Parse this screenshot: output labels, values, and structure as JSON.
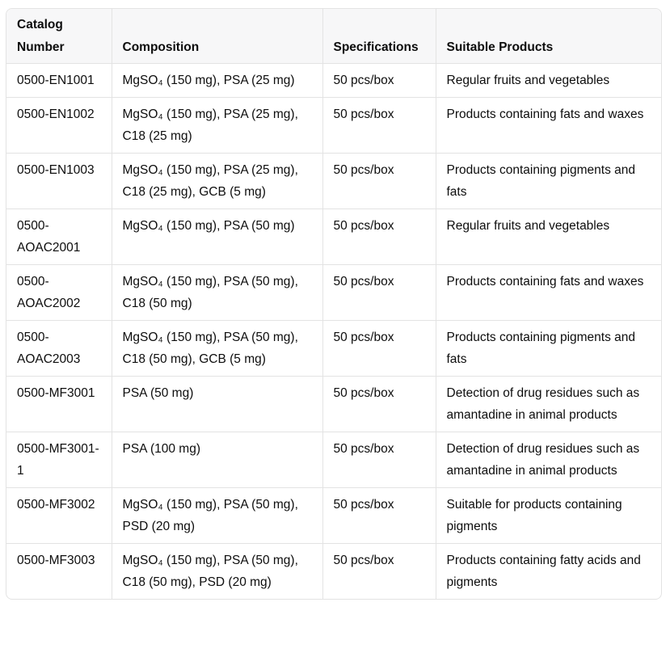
{
  "table": {
    "headers": [
      "Catalog Number",
      "Composition",
      "Specifications",
      "Suitable Products"
    ],
    "rows": [
      {
        "catalog": "0500-EN1001",
        "composition": "MgSO₄ (150 mg), PSA (25 mg)",
        "spec": "50 pcs/box",
        "products": "Regular fruits and vegetables"
      },
      {
        "catalog": "0500-EN1002",
        "composition": "MgSO₄ (150 mg), PSA (25 mg), C18 (25 mg)",
        "spec": "50 pcs/box",
        "products": "Products containing fats and waxes"
      },
      {
        "catalog": "0500-EN1003",
        "composition": "MgSO₄ (150 mg), PSA (25 mg), C18 (25 mg), GCB (5 mg)",
        "spec": "50 pcs/box",
        "products": "Products containing pigments and fats"
      },
      {
        "catalog": "0500-AOAC2001",
        "composition": "MgSO₄ (150 mg), PSA (50 mg)",
        "spec": "50 pcs/box",
        "products": "Regular fruits and vegetables"
      },
      {
        "catalog": "0500-AOAC2002",
        "composition": "MgSO₄ (150 mg), PSA (50 mg), C18 (50 mg)",
        "spec": "50 pcs/box",
        "products": "Products containing fats and waxes"
      },
      {
        "catalog": "0500-AOAC2003",
        "composition": "MgSO₄ (150 mg), PSA (50 mg), C18 (50 mg), GCB (5 mg)",
        "spec": "50 pcs/box",
        "products": "Products containing pigments and fats"
      },
      {
        "catalog": "0500-MF3001",
        "composition": "PSA (50 mg)",
        "spec": "50 pcs/box",
        "products": "Detection of drug residues such as amantadine in animal products"
      },
      {
        "catalog": "0500-MF3001-1",
        "composition": "PSA (100 mg)",
        "spec": "50 pcs/box",
        "products": "Detection of drug residues such as amantadine in animal products"
      },
      {
        "catalog": "0500-MF3002",
        "composition": "MgSO₄ (150 mg), PSA (50 mg), PSD (20 mg)",
        "spec": "50 pcs/box",
        "products": "Suitable for products containing pigments"
      },
      {
        "catalog": "0500-MF3003",
        "composition": "MgSO₄ (150 mg), PSA (50 mg), C18 (50 mg), PSD (20 mg)",
        "spec": "50 pcs/box",
        "products": "Products containing fatty acids and pigments"
      }
    ]
  }
}
